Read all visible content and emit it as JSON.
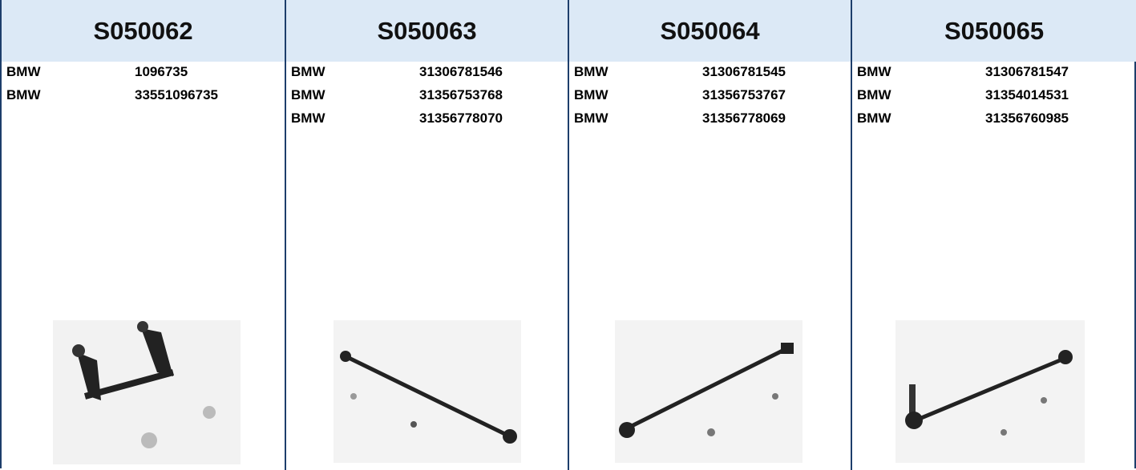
{
  "columns": [
    {
      "code": "S050062",
      "rows": [
        [
          "BMW",
          "1096735"
        ],
        [
          "BMW",
          "33551096735"
        ]
      ]
    },
    {
      "code": "S050063",
      "rows": [
        [
          "BMW",
          "31306781546"
        ],
        [
          "BMW",
          "31356753768"
        ],
        [
          "BMW",
          "31356778070"
        ]
      ]
    },
    {
      "code": "S050064",
      "rows": [
        [
          "BMW",
          "31306781545"
        ],
        [
          "BMW",
          "31356753767"
        ],
        [
          "BMW",
          "31356778069"
        ]
      ]
    },
    {
      "code": "S050065",
      "rows": [
        [
          "BMW",
          "31306781547"
        ],
        [
          "BMW",
          "31354014531"
        ],
        [
          "BMW",
          "31356760985"
        ]
      ]
    }
  ]
}
